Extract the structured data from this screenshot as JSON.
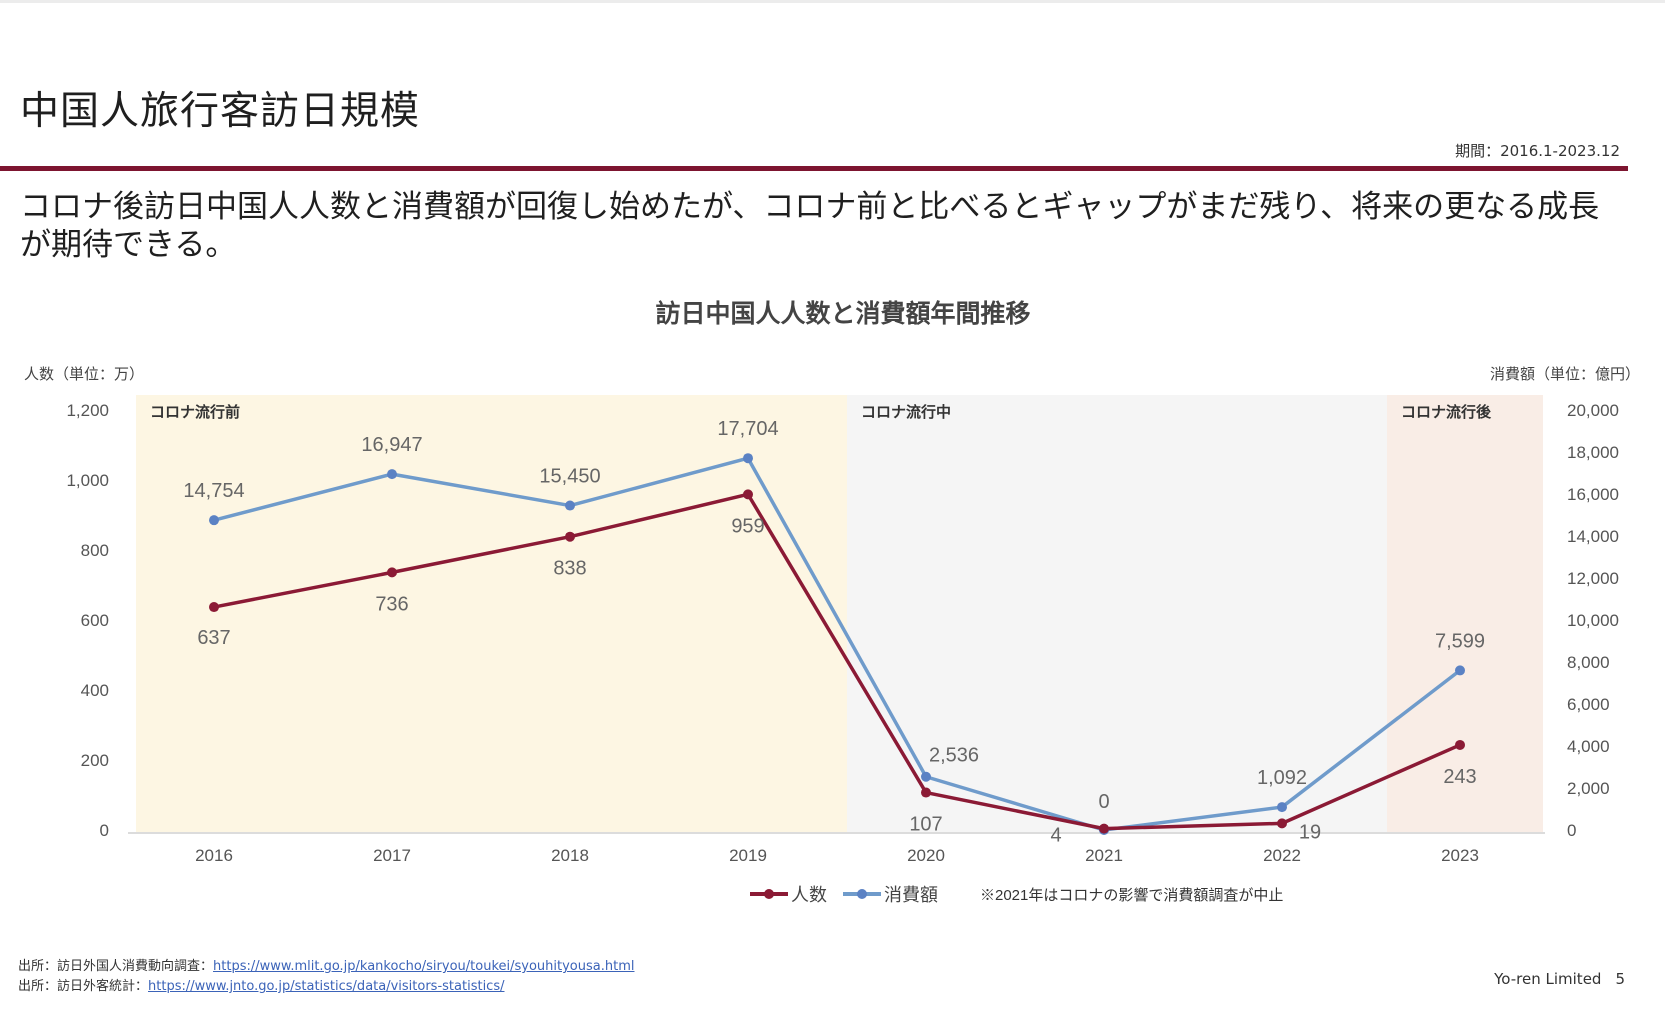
{
  "slide": {
    "title": "中国人旅行客訪日規模",
    "period": "期間：2016.1-2023.12",
    "headline": "コロナ後訪日中国人人数と消費額が回復し始めたが、コロナ前と比べるとギャップがまだ残り、将来の更なる成長が期待できる。",
    "company": "Yo-ren Limited",
    "page_number": "5"
  },
  "sources": [
    {
      "label": "出所：訪日外国人消費動向調査：",
      "url": "https://www.mlit.go.jp/kankocho/siryou/toukei/syouhityousa.html"
    },
    {
      "label": "出所：訪日外客統計：",
      "url": "https://www.jnto.go.jp/statistics/data/visitors-statistics/"
    }
  ],
  "chart_data": {
    "type": "line",
    "title": "訪日中国人人数と消費額年間推移",
    "categories": [
      "2016",
      "2017",
      "2018",
      "2019",
      "2020",
      "2021",
      "2022",
      "2023"
    ],
    "y_left": {
      "label": "人数（単位：万）",
      "range": [
        0,
        1200
      ],
      "ticks": [
        0,
        200,
        400,
        600,
        800,
        1000,
        1200
      ]
    },
    "y_right": {
      "label": "消費額（単位：億円）",
      "range": [
        0,
        20000
      ],
      "ticks": [
        0,
        2000,
        4000,
        6000,
        8000,
        10000,
        12000,
        14000,
        16000,
        18000,
        20000
      ]
    },
    "series": [
      {
        "name": "人数",
        "axis": "left",
        "color": "#8b1a35",
        "values": [
          637,
          736,
          838,
          959,
          107,
          4,
          19,
          243
        ],
        "labels": [
          "637",
          "736",
          "838",
          "959",
          "107",
          "4",
          "19",
          "243"
        ]
      },
      {
        "name": "消費額",
        "axis": "right",
        "color": "#6f9bcb",
        "values": [
          14754,
          16947,
          15450,
          17704,
          2536,
          0,
          1092,
          7599
        ],
        "labels": [
          "14,754",
          "16,947",
          "15,450",
          "17,704",
          "2,536",
          "0",
          "1,092",
          "7,599"
        ]
      }
    ],
    "phases": [
      {
        "label": "コロナ流行前",
        "from": "2016",
        "to": "2019",
        "color": "#fdf6e3"
      },
      {
        "label": "コロナ流行中",
        "from": "2020",
        "to": "2022",
        "color": "#f5f5f5"
      },
      {
        "label": "コロナ流行後",
        "from": "2023",
        "to": "2023",
        "color": "#f9ede6"
      }
    ],
    "note": "※2021年はコロナの影響で消費額調査が中止",
    "legend_position": "bottom-center",
    "grid": false
  }
}
